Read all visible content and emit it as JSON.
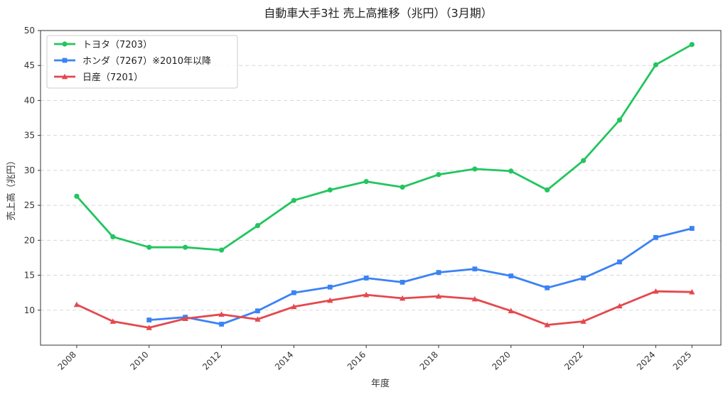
{
  "chart_data": {
    "type": "line",
    "title": "自動車大手3社 売上高推移（兆円）（3月期）",
    "xlabel": "年度",
    "ylabel": "売上高（兆円）",
    "ylim": [
      5,
      50
    ],
    "y_ticks": [
      10,
      15,
      20,
      25,
      30,
      35,
      40,
      45,
      50
    ],
    "x_ticks": [
      2008,
      2010,
      2012,
      2014,
      2016,
      2018,
      2020,
      2022,
      2024,
      2025
    ],
    "x_tick_labels": [
      "2008",
      "2010",
      "2012",
      "2014",
      "2016",
      "2018",
      "2020",
      "2022",
      "2024",
      "2025"
    ],
    "grid": "horizontal-dashed",
    "legend_position": "top-left",
    "series": [
      {
        "name": "トヨタ（7203）",
        "color": "#22c55e",
        "marker": "circle",
        "x": [
          2008,
          2009,
          2010,
          2011,
          2012,
          2013,
          2014,
          2015,
          2016,
          2017,
          2018,
          2019,
          2020,
          2021,
          2022,
          2023,
          2024,
          2025
        ],
        "values": [
          26.3,
          20.5,
          19.0,
          19.0,
          18.6,
          22.1,
          25.7,
          27.2,
          28.4,
          27.6,
          29.4,
          30.2,
          29.9,
          27.2,
          31.4,
          37.2,
          45.1,
          48.0
        ]
      },
      {
        "name": "ホンダ（7267）※2010年以降",
        "color": "#3b82f6",
        "marker": "square",
        "x": [
          2010,
          2011,
          2012,
          2013,
          2014,
          2015,
          2016,
          2017,
          2018,
          2019,
          2020,
          2021,
          2022,
          2023,
          2024,
          2025
        ],
        "values": [
          8.6,
          9.0,
          8.0,
          9.9,
          12.5,
          13.3,
          14.6,
          14.0,
          15.4,
          15.9,
          14.9,
          13.2,
          14.6,
          16.9,
          20.4,
          21.7
        ]
      },
      {
        "name": "日産（7201）",
        "color": "#e5484d",
        "marker": "triangle",
        "x": [
          2008,
          2009,
          2010,
          2011,
          2012,
          2013,
          2014,
          2015,
          2016,
          2017,
          2018,
          2019,
          2020,
          2021,
          2022,
          2023,
          2024,
          2025
        ],
        "values": [
          10.8,
          8.4,
          7.5,
          8.8,
          9.4,
          8.7,
          10.5,
          11.4,
          12.2,
          11.7,
          12.0,
          11.6,
          9.9,
          7.9,
          8.4,
          10.6,
          12.7,
          12.6
        ]
      }
    ]
  }
}
